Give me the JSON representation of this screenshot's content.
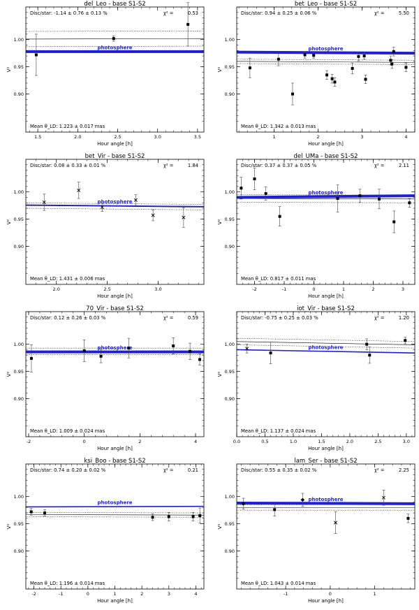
{
  "figure": {
    "panel_count": 8,
    "x_axis_label": "Hour angle [h]",
    "y_axis_label": "V²",
    "model_label": "photosphere",
    "colors": {
      "axis": "#000000",
      "photosphere": "#1f1fd6",
      "text": "#000000",
      "error_bar": "#444444"
    }
  },
  "chart_data": [
    {
      "type": "scatter",
      "title": "del_Leo  -  base S1-S2",
      "disc_star": "Disc/star:   -1.14 ± 0.76 ± 0.13 %",
      "chi2_label": "χ² =",
      "chi2_value": "0.53",
      "mean_theta": "Mean θ_LD:  1.223 ± 0.017 mas",
      "xlabel": "Hour angle [h]",
      "ylabel": "V²",
      "xlim": [
        1.35,
        3.58
      ],
      "ylim": [
        0.83,
        1.06
      ],
      "xticks": [
        1.5,
        2.0,
        2.5,
        3.0,
        3.5
      ],
      "xtick_labels": [
        "1.5",
        "2.0",
        "2.5",
        "3.0",
        "3.5"
      ],
      "yticks": [
        0.9,
        0.95,
        1.0
      ],
      "ytick_labels": [
        "0.90",
        "0.95",
        "1.00"
      ],
      "photosphere": {
        "x": [
          1.35,
          3.58
        ],
        "y": [
          0.978,
          0.978
        ],
        "thick": true
      },
      "fit_line": {
        "x": [
          1.35,
          3.58
        ],
        "y": [
          1.001,
          1.002
        ]
      },
      "fit_band": {
        "upper": [
          1.015,
          1.016
        ],
        "lower": [
          0.987,
          0.988
        ]
      },
      "points": [
        {
          "x": 1.48,
          "y": 0.972,
          "err": 0.038,
          "marker": "dot"
        },
        {
          "x": 2.45,
          "y": 1.002,
          "err": 0.005,
          "marker": "dot"
        },
        {
          "x": 3.38,
          "y": 1.028,
          "err": 0.04,
          "marker": "dot"
        }
      ]
    },
    {
      "type": "scatter",
      "title": "bet_Leo  -  base S1-S2",
      "disc_star": "Disc/star:   0.94 ± 0.25 ± 0.06 %",
      "chi2_label": "χ² =",
      "chi2_value": "5.50",
      "mean_theta": "Mean θ_LD:  1.342 ± 0.013 mas",
      "xlabel": "Hour angle [h]",
      "ylabel": "V²",
      "xlim": [
        0.15,
        4.2
      ],
      "ylim": [
        0.83,
        1.06
      ],
      "xticks": [
        1,
        2,
        3,
        4
      ],
      "xtick_labels": [
        "1",
        "2",
        "3",
        "4"
      ],
      "yticks": [
        0.9,
        0.95,
        1.0
      ],
      "ytick_labels": [
        "0.90",
        "0.95",
        "1.00"
      ],
      "photosphere": {
        "x": [
          0.15,
          4.2
        ],
        "y": [
          0.977,
          0.975
        ],
        "thick": true
      },
      "fit_line": {
        "x": [
          0.15,
          4.2
        ],
        "y": [
          0.96,
          0.958
        ]
      },
      "fit_band": {
        "upper": [
          0.964,
          0.962
        ],
        "lower": [
          0.956,
          0.954
        ]
      },
      "points": [
        {
          "x": 0.45,
          "y": 0.948,
          "err": 0.018,
          "marker": "dot"
        },
        {
          "x": 1.1,
          "y": 0.964,
          "err": 0.012,
          "marker": "dot"
        },
        {
          "x": 1.7,
          "y": 0.972,
          "err": 0.006,
          "marker": "dot"
        },
        {
          "x": 1.9,
          "y": 0.971,
          "err": 0.005,
          "marker": "dot"
        },
        {
          "x": 2.2,
          "y": 0.935,
          "err": 0.008,
          "marker": "dot"
        },
        {
          "x": 2.32,
          "y": 0.928,
          "err": 0.008,
          "marker": "dot"
        },
        {
          "x": 2.38,
          "y": 0.922,
          "err": 0.008,
          "marker": "dot"
        },
        {
          "x": 1.42,
          "y": 0.9,
          "err": 0.02,
          "marker": "dot"
        },
        {
          "x": 2.78,
          "y": 0.947,
          "err": 0.01,
          "marker": "dot"
        },
        {
          "x": 2.92,
          "y": 0.969,
          "err": 0.008,
          "marker": "dot"
        },
        {
          "x": 3.05,
          "y": 0.97,
          "err": 0.006,
          "marker": "dot"
        },
        {
          "x": 3.08,
          "y": 0.927,
          "err": 0.008,
          "marker": "dot"
        },
        {
          "x": 3.65,
          "y": 0.962,
          "err": 0.008,
          "marker": "dot"
        },
        {
          "x": 3.68,
          "y": 0.955,
          "err": 0.008,
          "marker": "dot"
        },
        {
          "x": 3.72,
          "y": 0.978,
          "err": 0.008,
          "marker": "dot"
        },
        {
          "x": 4.0,
          "y": 0.949,
          "err": 0.008,
          "marker": "dot"
        }
      ]
    },
    {
      "type": "scatter",
      "title": "bet_Vir  -  base S1-S2",
      "disc_star": "Disc/star:   0.08 ± 0.33 ± 0.01 %",
      "chi2_label": "χ² =",
      "chi2_value": "1.84",
      "mean_theta": "Mean θ_LD:  1.431 ± 0.006 mas",
      "xlabel": "Hour angle [h]",
      "ylabel": "V²",
      "xlim": [
        1.7,
        3.45
      ],
      "ylim": [
        0.83,
        1.06
      ],
      "xticks": [
        2.0,
        2.5,
        3.0
      ],
      "xtick_labels": [
        "2.0",
        "2.5",
        "3.0"
      ],
      "yticks": [
        0.9,
        0.95,
        1.0
      ],
      "ytick_labels": [
        "0.90",
        "0.95",
        "1.00"
      ],
      "photosphere": {
        "x": [
          1.7,
          3.45
        ],
        "y": [
          0.976,
          0.973
        ],
        "thick": false
      },
      "fit_line": {
        "x": [
          1.7,
          3.45
        ],
        "y": [
          0.975,
          0.972
        ]
      },
      "fit_band": {
        "upper": [
          0.98,
          0.977
        ],
        "lower": [
          0.97,
          0.967
        ]
      },
      "points": [
        {
          "x": 1.88,
          "y": 0.981,
          "err": 0.015,
          "marker": "x"
        },
        {
          "x": 2.22,
          "y": 1.003,
          "err": 0.015,
          "marker": "x"
        },
        {
          "x": 2.45,
          "y": 0.972,
          "err": 0.008,
          "marker": "x"
        },
        {
          "x": 2.78,
          "y": 0.985,
          "err": 0.01,
          "marker": "x"
        },
        {
          "x": 2.95,
          "y": 0.957,
          "err": 0.01,
          "marker": "x"
        },
        {
          "x": 3.25,
          "y": 0.953,
          "err": 0.018,
          "marker": "x"
        }
      ]
    },
    {
      "type": "scatter",
      "title": "del_UMa  -  base S1-S2",
      "disc_star": "Disc/star:   0.37 ± 0.37 ± 0.05 %",
      "chi2_label": "χ² =",
      "chi2_value": "2.11",
      "mean_theta": "Mean θ_LD:  0.817 ± 0.011 mas",
      "xlabel": "Hour angle [h]",
      "ylabel": "V²",
      "xlim": [
        -2.6,
        3.4
      ],
      "ylim": [
        0.83,
        1.06
      ],
      "xticks": [
        -2,
        -1,
        0,
        1,
        2,
        3
      ],
      "xtick_labels": [
        "-2",
        "-1",
        "0",
        "1",
        "2",
        "3"
      ],
      "yticks": [
        0.9,
        0.95,
        1.0
      ],
      "ytick_labels": [
        "0.90",
        "0.95",
        "1.00"
      ],
      "photosphere": {
        "x": [
          -2.6,
          3.4
        ],
        "y": [
          0.99,
          0.993
        ],
        "thick": true
      },
      "fit_line": {
        "x": [
          -2.6,
          3.4
        ],
        "y": [
          0.988,
          0.987
        ]
      },
      "fit_band": {
        "upper": [
          0.995,
          0.994
        ],
        "lower": [
          0.981,
          0.98
        ]
      },
      "points": [
        {
          "x": -2.45,
          "y": 1.007,
          "err": 0.02,
          "marker": "dot"
        },
        {
          "x": -2.0,
          "y": 1.024,
          "err": 0.02,
          "marker": "dot"
        },
        {
          "x": -1.62,
          "y": 0.997,
          "err": 0.012,
          "marker": "dot"
        },
        {
          "x": -1.15,
          "y": 0.955,
          "err": 0.018,
          "marker": "dot"
        },
        {
          "x": 0.8,
          "y": 0.988,
          "err": 0.025,
          "marker": "dot"
        },
        {
          "x": 1.55,
          "y": 0.993,
          "err": 0.012,
          "marker": "dot"
        },
        {
          "x": 2.2,
          "y": 0.987,
          "err": 0.018,
          "marker": "dot"
        },
        {
          "x": 2.7,
          "y": 0.945,
          "err": 0.02,
          "marker": "dot"
        },
        {
          "x": 3.22,
          "y": 0.98,
          "err": 0.008,
          "marker": "dot"
        }
      ]
    },
    {
      "type": "scatter",
      "title": "70_Vir  -  base S1-S2",
      "disc_star": "Disc/star:   0.12 ± 0.26 ± 0.03 %",
      "chi2_label": "χ² =",
      "chi2_value": "0.59",
      "mean_theta": "Mean θ_LD:  1.009 ± 0.024 mas",
      "xlabel": "Hour angle [h]",
      "ylabel": "V²",
      "xlim": [
        -2.1,
        4.3
      ],
      "ylim": [
        0.83,
        1.06
      ],
      "xticks": [
        -2,
        0,
        2,
        4
      ],
      "xtick_labels": [
        "-2",
        "0",
        "2",
        "4"
      ],
      "yticks": [
        0.9,
        0.95,
        1.0
      ],
      "ytick_labels": [
        "0.90",
        "0.95",
        "1.00"
      ],
      "photosphere": {
        "x": [
          -2.1,
          4.3
        ],
        "y": [
          0.986,
          0.986
        ],
        "thick": true
      },
      "fit_line": {
        "x": [
          -2.1,
          4.3
        ],
        "y": [
          0.987,
          0.987
        ]
      },
      "fit_band": {
        "upper": [
          0.993,
          0.993
        ],
        "lower": [
          0.981,
          0.981
        ]
      },
      "points": [
        {
          "x": -1.9,
          "y": 0.974,
          "err": 0.025,
          "marker": "dot"
        },
        {
          "x": 0.0,
          "y": 0.988,
          "err": 0.02,
          "marker": "dot"
        },
        {
          "x": 0.6,
          "y": 0.978,
          "err": 0.012,
          "marker": "dot"
        },
        {
          "x": 1.6,
          "y": 0.993,
          "err": 0.018,
          "marker": "dot"
        },
        {
          "x": 3.2,
          "y": 0.997,
          "err": 0.015,
          "marker": "dot"
        },
        {
          "x": 3.8,
          "y": 0.987,
          "err": 0.015,
          "marker": "dot"
        },
        {
          "x": 4.15,
          "y": 0.972,
          "err": 0.01,
          "marker": "dot"
        }
      ]
    },
    {
      "type": "scatter",
      "title": "iot_Vir  -  base S1-S2",
      "disc_star": "Disc/star:   -0.75 ± 0.25 ± 0.03 %",
      "chi2_label": "χ² =",
      "chi2_value": "1.20",
      "mean_theta": "Mean θ_LD:  1.137 ± 0.024 mas",
      "xlabel": "Hour angle [h]",
      "ylabel": "V²",
      "xlim": [
        0.0,
        3.15
      ],
      "ylim": [
        0.83,
        1.06
      ],
      "xticks": [
        0.0,
        0.5,
        1.0,
        1.5,
        2.0,
        2.5,
        3.0
      ],
      "xtick_labels": [
        "0.0",
        "0.5",
        "1.0",
        "1.5",
        "2.0",
        "2.5",
        "3.0"
      ],
      "yticks": [
        0.9,
        0.95,
        1.0
      ],
      "ytick_labels": [
        "0.90",
        "0.95",
        "1.00"
      ],
      "photosphere": {
        "x": [
          0.0,
          3.15
        ],
        "y": [
          0.99,
          0.984
        ],
        "thick": false
      },
      "fit_line": {
        "x": [
          0.0,
          3.15
        ],
        "y": [
          1.005,
          0.999
        ]
      },
      "fit_band": {
        "upper": [
          1.011,
          1.005
        ],
        "lower": [
          0.999,
          0.993
        ]
      },
      "points": [
        {
          "x": 0.18,
          "y": 0.992,
          "err": 0.008,
          "marker": "x"
        },
        {
          "x": 0.6,
          "y": 0.984,
          "err": 0.02,
          "marker": "dot"
        },
        {
          "x": 2.3,
          "y": 1.0,
          "err": 0.01,
          "marker": "dot"
        },
        {
          "x": 2.35,
          "y": 0.98,
          "err": 0.015,
          "marker": "dot"
        },
        {
          "x": 2.98,
          "y": 1.007,
          "err": 0.006,
          "marker": "dot"
        }
      ]
    },
    {
      "type": "scatter",
      "title": "ksi_Boo  -  base S1-S2",
      "disc_star": "Disc/star:   0.74 ± 0.20 ± 0.02 %",
      "chi2_label": "χ² =",
      "chi2_value": "0.21",
      "mean_theta": "Mean θ_LD:  1.196 ± 0.014 mas",
      "xlabel": "Hour angle [h]",
      "ylabel": "V²",
      "xlim": [
        -2.3,
        4.3
      ],
      "ylim": [
        0.83,
        1.06
      ],
      "xticks": [
        -2,
        -1,
        0,
        1,
        2,
        3,
        4
      ],
      "xtick_labels": [
        "-2",
        "-1",
        "0",
        "1",
        "2",
        "3",
        "4"
      ],
      "yticks": [
        0.9,
        0.95,
        1.0
      ],
      "ytick_labels": [
        "0.90",
        "0.95",
        "1.00"
      ],
      "photosphere": {
        "x": [
          -2.3,
          4.3
        ],
        "y": [
          0.981,
          0.982
        ],
        "thick": false
      },
      "fit_line": {
        "x": [
          -2.3,
          4.3
        ],
        "y": [
          0.967,
          0.966
        ]
      },
      "fit_band": {
        "upper": [
          0.971,
          0.97
        ],
        "lower": [
          0.963,
          0.962
        ]
      },
      "points": [
        {
          "x": -2.1,
          "y": 0.972,
          "err": 0.006,
          "marker": "dot"
        },
        {
          "x": -1.6,
          "y": 0.97,
          "err": 0.006,
          "marker": "dot"
        },
        {
          "x": 2.4,
          "y": 0.962,
          "err": 0.006,
          "marker": "dot"
        },
        {
          "x": 3.0,
          "y": 0.963,
          "err": 0.008,
          "marker": "dot"
        },
        {
          "x": 3.9,
          "y": 0.963,
          "err": 0.008,
          "marker": "dot"
        },
        {
          "x": 4.15,
          "y": 0.965,
          "err": 0.014,
          "marker": "dot"
        }
      ]
    },
    {
      "type": "scatter",
      "title": "lam_Ser  -  base S1-S2",
      "disc_star": "Disc/star:   0.55 ± 0.35 ± 0.02 %",
      "chi2_label": "χ² =",
      "chi2_value": "2.25",
      "mean_theta": "Mean θ_LD:  1.043 ± 0.014 mas",
      "xlabel": "Hour angle [h]",
      "ylabel": "V²",
      "xlim": [
        -2.1,
        1.9
      ],
      "ylim": [
        0.83,
        1.06
      ],
      "xticks": [
        -1,
        0,
        1
      ],
      "xtick_labels": [
        "-1",
        "0",
        "1"
      ],
      "yticks": [
        0.9,
        0.95,
        1.0
      ],
      "ytick_labels": [
        "0.90",
        "0.95",
        "1.00"
      ],
      "photosphere": {
        "x": [
          -2.1,
          1.9
        ],
        "y": [
          0.988,
          0.987
        ],
        "thick": true
      },
      "fit_line": {
        "x": [
          -2.1,
          1.9
        ],
        "y": [
          0.98,
          0.98
        ]
      },
      "fit_band": {
        "upper": [
          0.985,
          0.985
        ],
        "lower": [
          0.975,
          0.975
        ]
      },
      "points": [
        {
          "x": -1.95,
          "y": 0.987,
          "err": 0.01,
          "marker": "dot"
        },
        {
          "x": -1.25,
          "y": 0.976,
          "err": 0.012,
          "marker": "dot"
        },
        {
          "x": -0.62,
          "y": 0.994,
          "err": 0.012,
          "marker": "diamond"
        },
        {
          "x": 0.12,
          "y": 0.952,
          "err": 0.02,
          "marker": "x"
        },
        {
          "x": 1.2,
          "y": 0.998,
          "err": 0.014,
          "marker": "x"
        },
        {
          "x": 1.75,
          "y": 0.96,
          "err": 0.008,
          "marker": "dot"
        }
      ]
    }
  ]
}
